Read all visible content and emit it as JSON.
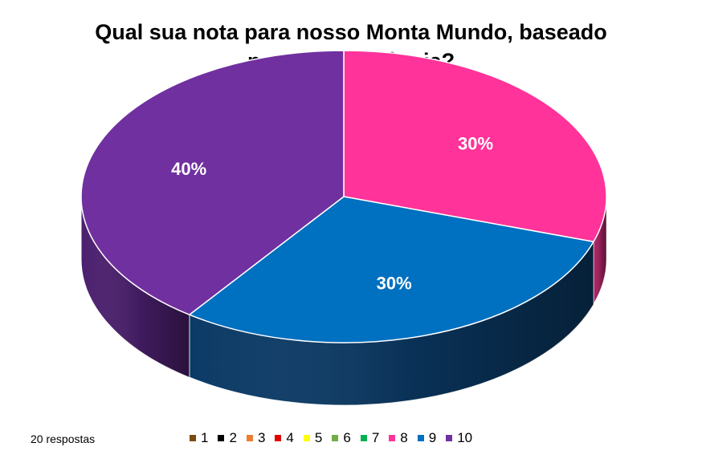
{
  "chart_data": {
    "type": "pie",
    "title_lines": [
      "Qual sua nota para nosso Monta Mundo, baseado",
      "na sua experiência?"
    ],
    "style": "3d",
    "categories": [
      "1",
      "2",
      "3",
      "4",
      "5",
      "6",
      "7",
      "8",
      "9",
      "10"
    ],
    "values": [
      0,
      0,
      0,
      0,
      0,
      0,
      0,
      30,
      30,
      40
    ],
    "data_labels": [
      "",
      "",
      "",
      "",
      "",
      "",
      "",
      "30%",
      "30%",
      "40%"
    ],
    "colors": [
      "#7b4a12",
      "#000000",
      "#ed7d31",
      "#e00000",
      "#ffff00",
      "#70ad47",
      "#00b050",
      "#ff3399",
      "#0070c0",
      "#7030a0"
    ],
    "side_colors": [
      "#4a2b0a",
      "#000000",
      "#9a4f1d",
      "#8a0000",
      "#a0a000",
      "#466b2c",
      "#006b30",
      "#a3205f",
      "#0b3a66",
      "#4b1f6e"
    ],
    "legend_position": "bottom"
  },
  "footer": {
    "responses": "20 respostas"
  }
}
